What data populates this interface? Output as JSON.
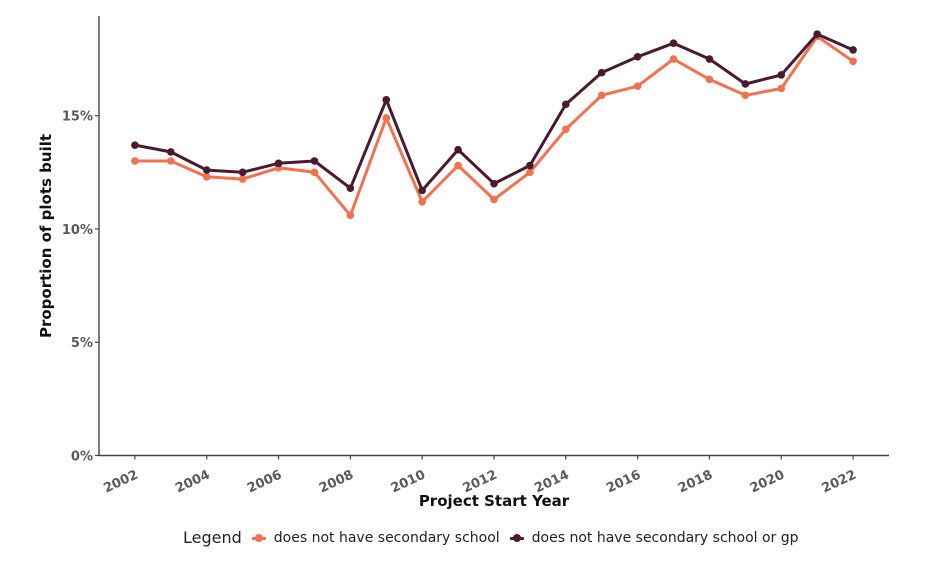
{
  "chart_data": {
    "type": "line",
    "title": "",
    "xlabel": "Project Start Year",
    "ylabel": "Proportion of plots built",
    "xlim": [
      2001,
      2023
    ],
    "ylim": [
      0,
      19.4
    ],
    "grid": false,
    "x": [
      2002,
      2003,
      2004,
      2005,
      2006,
      2007,
      2008,
      2009,
      2010,
      2011,
      2012,
      2013,
      2014,
      2015,
      2016,
      2017,
      2018,
      2019,
      2020,
      2021,
      2022
    ],
    "x_ticks": [
      2002,
      2004,
      2006,
      2008,
      2010,
      2012,
      2014,
      2016,
      2018,
      2020,
      2022
    ],
    "x_tick_labels": [
      "2002",
      "2004",
      "2006",
      "2008",
      "2010",
      "2012",
      "2014",
      "2016",
      "2018",
      "2020",
      "2022"
    ],
    "y_ticks": [
      0,
      5,
      10,
      15
    ],
    "y_tick_labels": [
      "0%",
      "5%",
      "10%",
      "15%"
    ],
    "legend_title": "Legend",
    "legend_position": "bottom",
    "series": [
      {
        "name": "does not have secondary school",
        "color": "#f2714f",
        "values": [
          13.0,
          13.0,
          12.3,
          12.2,
          12.7,
          12.5,
          10.6,
          14.9,
          11.2,
          12.8,
          11.3,
          12.5,
          14.4,
          15.9,
          16.3,
          17.5,
          16.6,
          15.9,
          16.2,
          18.5,
          17.4
        ]
      },
      {
        "name": "does not have secondary school or gp",
        "color": "#4a1a30",
        "values": [
          13.7,
          13.4,
          12.6,
          12.5,
          12.9,
          13.0,
          11.8,
          15.7,
          11.7,
          13.5,
          12.0,
          12.8,
          15.5,
          16.9,
          17.6,
          18.2,
          17.5,
          16.4,
          16.8,
          18.6,
          17.9
        ]
      }
    ]
  }
}
